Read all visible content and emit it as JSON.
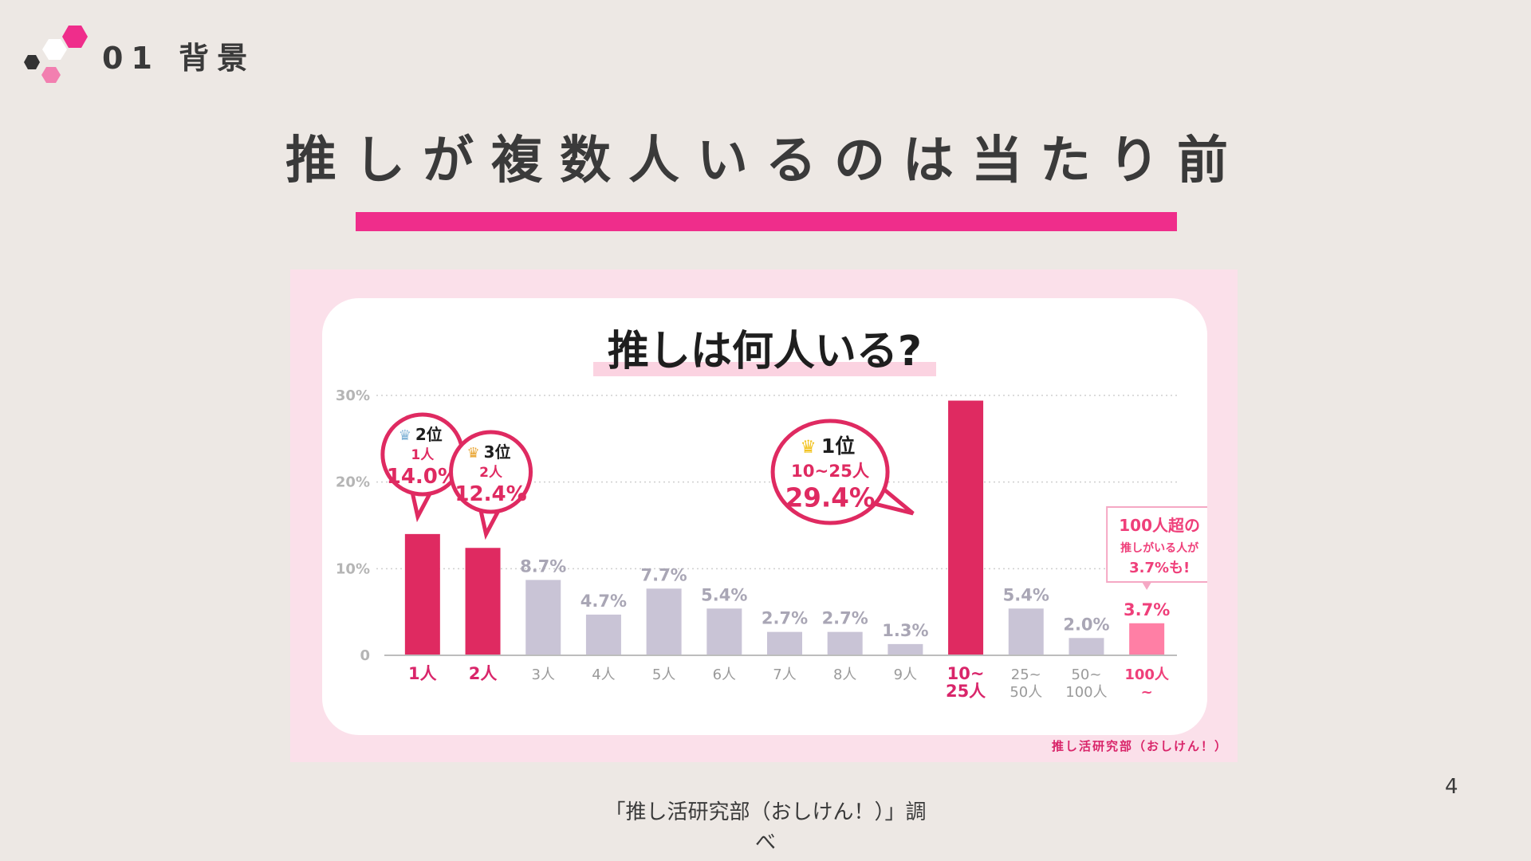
{
  "header": {
    "section_label": "01 背景"
  },
  "slide": {
    "title": "推しが複数人いるのは当たり前",
    "page_number": "4"
  },
  "source": {
    "line1": "「推し活研究部（おしけん！）」調",
    "line2": "べ"
  },
  "colors": {
    "accent": "#ef2d8b",
    "bar_highlight": "#df2a61",
    "bar_normal": "#c9c4d6",
    "bar_light": "#ff7fa5"
  },
  "chart_data": {
    "type": "bar",
    "title": "推しは何人いる?",
    "credit": "推し活研究部（おしけん！）",
    "categories": [
      [
        "1人"
      ],
      [
        "2人"
      ],
      [
        "3人"
      ],
      [
        "4人"
      ],
      [
        "5人"
      ],
      [
        "6人"
      ],
      [
        "7人"
      ],
      [
        "8人"
      ],
      [
        "9人"
      ],
      [
        "10~",
        "25人"
      ],
      [
        "25~",
        "50人"
      ],
      [
        "50~",
        "100人"
      ],
      [
        "100人",
        "~"
      ]
    ],
    "values": [
      14.0,
      12.4,
      8.7,
      4.7,
      7.7,
      5.4,
      2.7,
      2.7,
      1.3,
      29.4,
      5.4,
      2.0,
      3.7
    ],
    "value_labels": [
      "",
      "",
      "8.7%",
      "4.7%",
      "7.7%",
      "5.4%",
      "2.7%",
      "2.7%",
      "1.3%",
      "",
      "5.4%",
      "2.0%",
      "3.7%"
    ],
    "highlight": [
      0,
      1,
      9
    ],
    "pink_index": 12,
    "ylim": [
      0,
      30
    ],
    "yticks": [
      {
        "value": 0,
        "label": "0"
      },
      {
        "value": 10,
        "label": "10%"
      },
      {
        "value": 20,
        "label": "20%"
      },
      {
        "value": 30,
        "label": "30%"
      }
    ],
    "callouts": [
      {
        "index": 0,
        "rank": "2位",
        "category": "1人",
        "value": "14.0%"
      },
      {
        "index": 1,
        "rank": "3位",
        "category": "2人",
        "value": "12.4%"
      },
      {
        "index": 9,
        "rank": "1位",
        "category": "10~25人",
        "value": "29.4%"
      }
    ],
    "note": {
      "line1": "100人超の",
      "line2": "推しがいる人が",
      "line3": "3.7%も!"
    }
  }
}
